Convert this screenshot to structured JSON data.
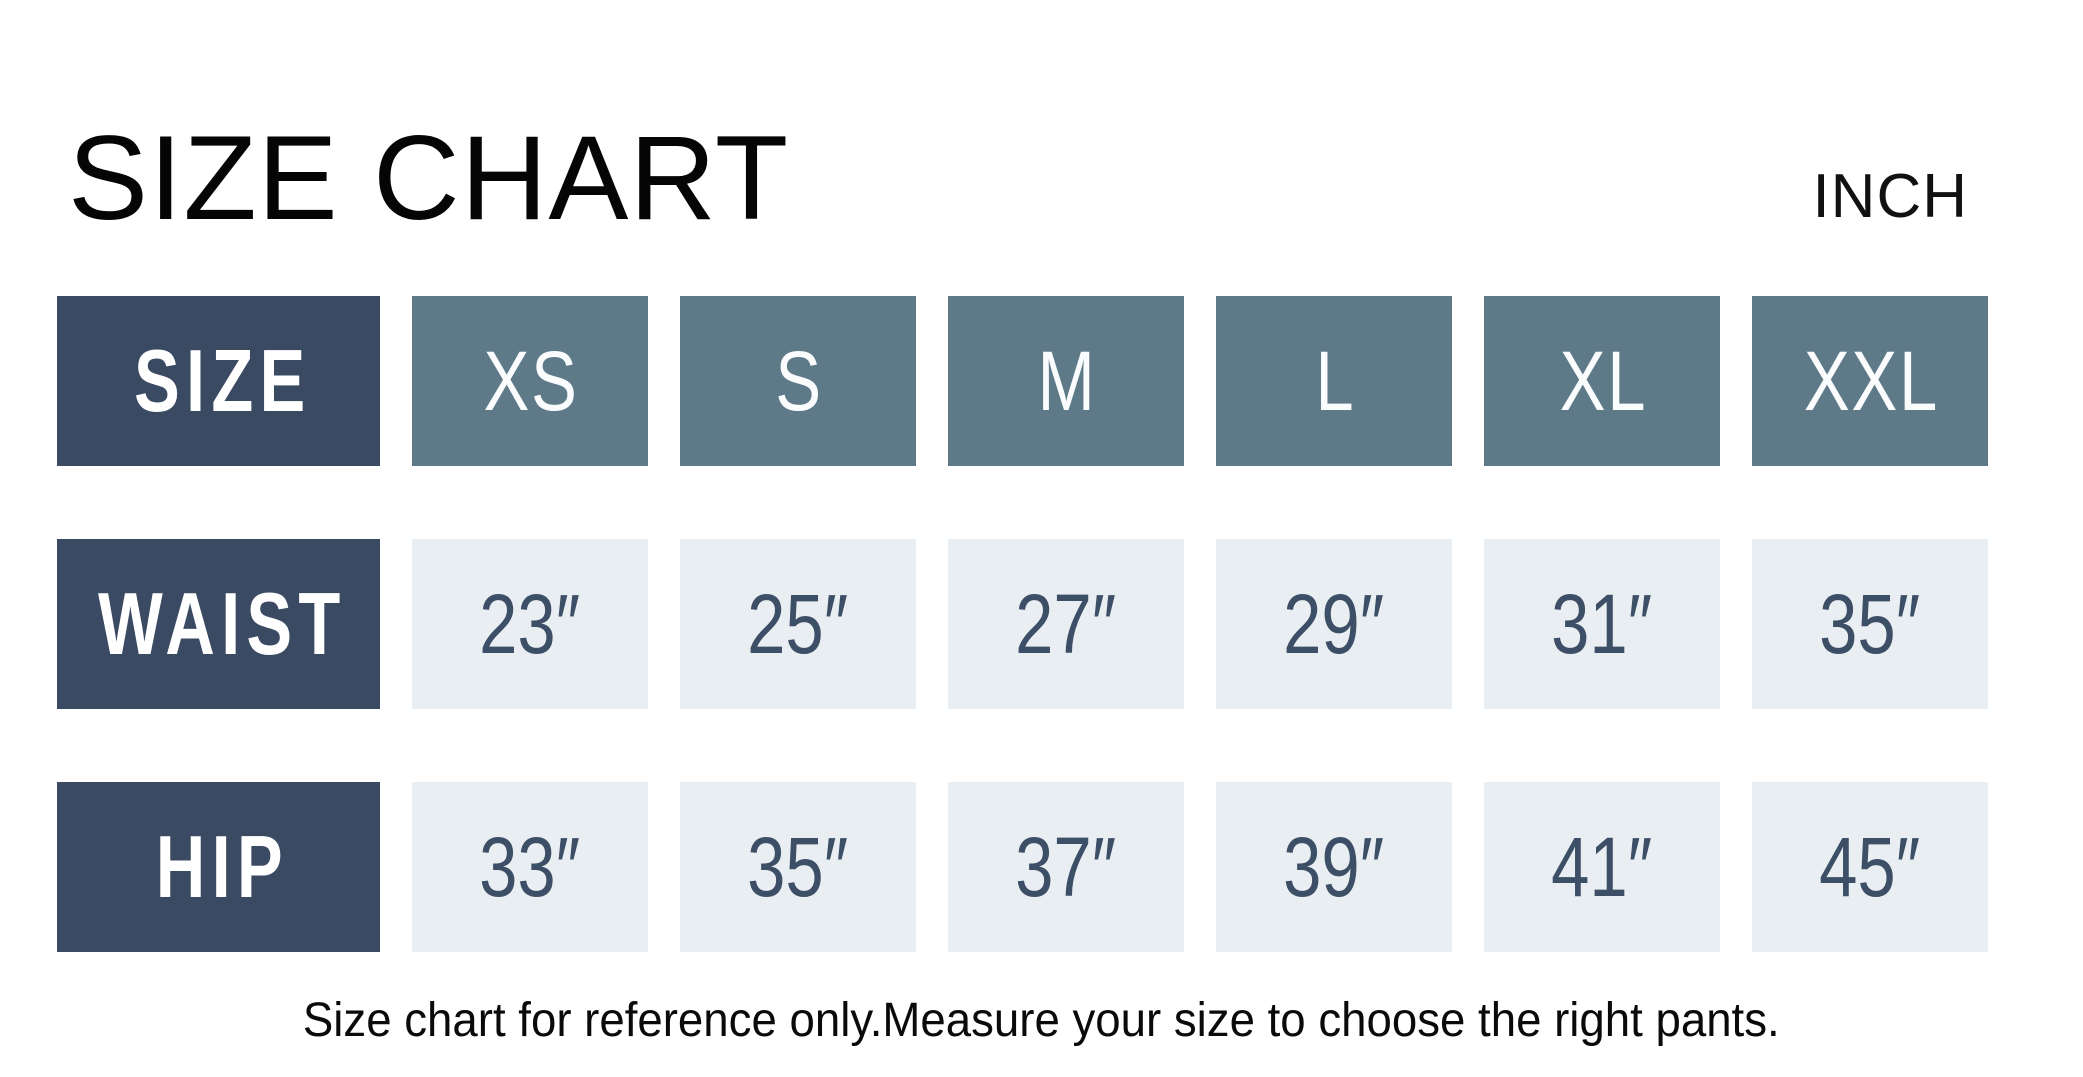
{
  "title": "SIZE CHART",
  "unit_label": "INCH",
  "caption": "Size chart for reference only.Measure your size to choose the right pants.",
  "colors": {
    "row_label_bg": "#3a4a63",
    "size_header_bg": "#5e7a89",
    "value_cell_bg": "#e9eef2",
    "value_text": "#3c4f66",
    "header_text": "#ffffff",
    "title_text": "#050505"
  },
  "chart_data": {
    "type": "table",
    "title": "SIZE CHART",
    "unit": "INCH",
    "columns": [
      "SIZE",
      "XS",
      "S",
      "M",
      "L",
      "XL",
      "XXL"
    ],
    "rows": [
      {
        "label": "WAIST",
        "values": [
          "23″",
          "25″",
          "27″",
          "29″",
          "31″",
          "35″"
        ]
      },
      {
        "label": "HIP",
        "values": [
          "33″",
          "35″",
          "37″",
          "39″",
          "41″",
          "45″"
        ]
      }
    ],
    "notes": "Size chart for reference only.Measure your size to choose the right pants."
  }
}
